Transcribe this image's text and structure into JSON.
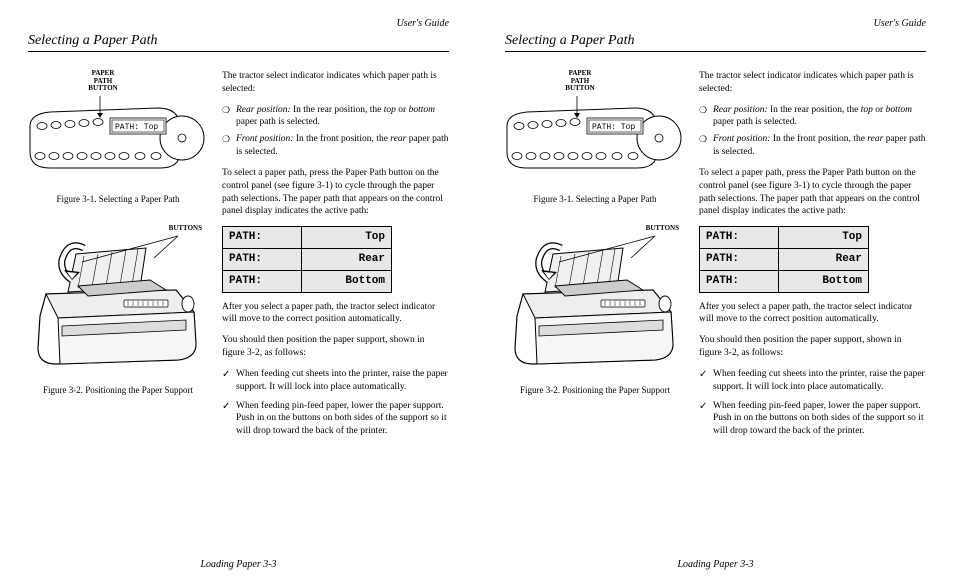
{
  "header": "User's Guide",
  "section_title": "Selecting a Paper Path",
  "footer": "Loading Paper 3-3",
  "fig1": {
    "label": "PAPER PATH BUTTON",
    "display": "PATH:   Top",
    "caption": "Figure 3-1.  Selecting a Paper Path"
  },
  "fig2": {
    "label": "BUTTONS",
    "caption": "Figure 3-2.  Positioning the Paper Support"
  },
  "text": {
    "intro": "The tractor select indicator indicates which paper path is selected:",
    "rear_label": "Rear position:",
    "rear_body": "  In the rear position, the ",
    "rear_body2": " paper path is selected.",
    "top_or_bottom": "top",
    "or": " or ",
    "bottom_word": "bottom",
    "front_label": "Front position:",
    "front_body": "  In the front position, the ",
    "rear_word": "rear",
    "front_body2": " paper path is selected.",
    "select_para": "To select a paper path, press the Paper Path button on the control panel (see figure 3-1) to cycle through the paper path selections.  The paper path that appears on the control panel display indicates the active path:",
    "after_para": "After you select a paper path, the tractor select indicator will move to the correct position automatically.",
    "position_para": "You should then position the paper support, shown in figure 3-2, as follows:",
    "check1": "When feeding cut sheets into the printer, raise the paper support.  It will lock into place automatically.",
    "check2": "When feeding pin-feed paper, lower the paper support.  Push in on the buttons on both sides of the support so it will drop toward the back of the printer."
  },
  "path_table": [
    {
      "label": "PATH:",
      "value": "Top"
    },
    {
      "label": "PATH:",
      "value": "Rear"
    },
    {
      "label": "PATH:",
      "value": "Bottom"
    }
  ]
}
